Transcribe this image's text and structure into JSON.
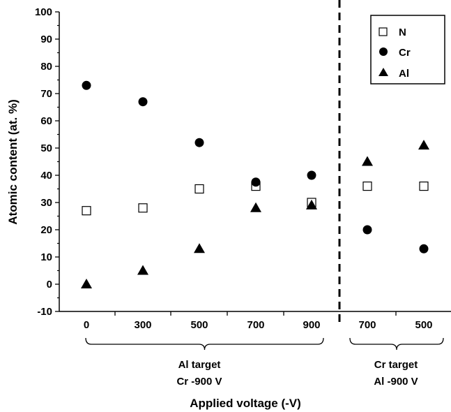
{
  "chart_data": {
    "type": "scatter",
    "xlabel": "Applied voltage (-V)",
    "ylabel": "Atomic content (at. %)",
    "ylim": [
      -10,
      100
    ],
    "yticks": [
      -10,
      0,
      10,
      20,
      30,
      40,
      50,
      60,
      70,
      80,
      90,
      100
    ],
    "categories": [
      "0",
      "300",
      "500",
      "700",
      "900",
      "700",
      "500"
    ],
    "series": [
      {
        "name": "N",
        "marker": "open-square",
        "values": [
          27,
          28,
          35,
          36,
          30,
          36,
          36
        ]
      },
      {
        "name": "Cr",
        "marker": "filled-circle",
        "values": [
          73,
          67,
          52,
          37.5,
          40,
          20,
          13
        ]
      },
      {
        "name": "Al",
        "marker": "filled-triangle",
        "values": [
          0,
          5,
          13,
          28,
          29,
          45,
          51
        ]
      }
    ],
    "groups": [
      {
        "line1": "Al target",
        "line2": "Cr -900 V",
        "from": 0,
        "to": 4
      },
      {
        "line1": "Cr target",
        "line2": "Al -900 V",
        "from": 5,
        "to": 6
      }
    ],
    "divider_after_category": 4,
    "legend_position": "top-right",
    "grid": false
  }
}
